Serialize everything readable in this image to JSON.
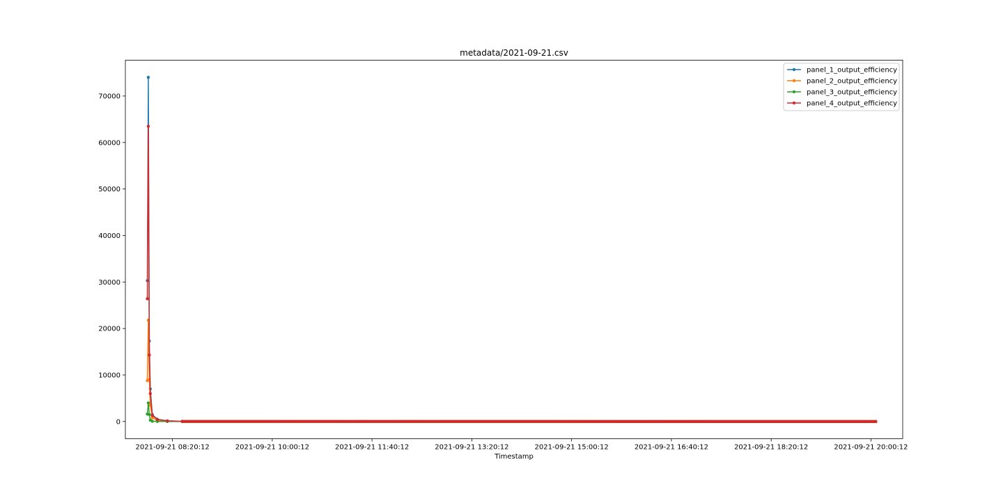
{
  "chart_data": {
    "type": "line",
    "title": "metadata/2021-09-21.csv",
    "xlabel": "Timestamp",
    "ylabel": "",
    "x_type": "datetime",
    "xlim": [
      "2021-09-21 07:33:00",
      "2021-09-21 20:32:00"
    ],
    "ylim": [
      -3700,
      77700
    ],
    "x_ticks": [
      "2021-09-21 08:20:12",
      "2021-09-21 10:00:12",
      "2021-09-21 11:40:12",
      "2021-09-21 13:20:12",
      "2021-09-21 15:00:12",
      "2021-09-21 16:40:12",
      "2021-09-21 18:20:12",
      "2021-09-21 20:00:12"
    ],
    "y_ticks": [
      0,
      10000,
      20000,
      30000,
      40000,
      50000,
      60000,
      70000
    ],
    "y_tick_labels": [
      "0",
      "10000",
      "20000",
      "30000",
      "40000",
      "50000",
      "60000",
      "70000"
    ],
    "grid": false,
    "legend_position": "top-right",
    "marker": "dot",
    "series": [
      {
        "name": "panel_1_output_efficiency",
        "color": "#1f77b4",
        "points": [
          [
            "2021-09-21 07:55:00",
            30300
          ],
          [
            "2021-09-21 07:56:00",
            74000
          ],
          [
            "2021-09-21 07:57:00",
            17300
          ],
          [
            "2021-09-21 07:58:00",
            7000
          ],
          [
            "2021-09-21 08:00:00",
            1500
          ],
          [
            "2021-09-21 08:05:00",
            500
          ],
          [
            "2021-09-21 08:15:00",
            150
          ],
          [
            "2021-09-21 08:30:00",
            40
          ],
          [
            "2021-09-21 20:05:00",
            0
          ]
        ]
      },
      {
        "name": "panel_2_output_efficiency",
        "color": "#ff7f0e",
        "points": [
          [
            "2021-09-21 07:55:00",
            8800
          ],
          [
            "2021-09-21 07:56:00",
            21800
          ],
          [
            "2021-09-21 07:57:00",
            9000
          ],
          [
            "2021-09-21 07:58:00",
            3500
          ],
          [
            "2021-09-21 08:00:00",
            800
          ],
          [
            "2021-09-21 08:05:00",
            250
          ],
          [
            "2021-09-21 08:15:00",
            80
          ],
          [
            "2021-09-21 08:30:00",
            20
          ],
          [
            "2021-09-21 20:05:00",
            0
          ]
        ]
      },
      {
        "name": "panel_3_output_efficiency",
        "color": "#2ca02c",
        "points": [
          [
            "2021-09-21 07:55:00",
            1600
          ],
          [
            "2021-09-21 07:56:00",
            4000
          ],
          [
            "2021-09-21 07:57:00",
            1500
          ],
          [
            "2021-09-21 07:58:00",
            300
          ],
          [
            "2021-09-21 08:00:00",
            60
          ],
          [
            "2021-09-21 08:05:00",
            20
          ],
          [
            "2021-09-21 08:15:00",
            5
          ],
          [
            "2021-09-21 08:30:00",
            0
          ],
          [
            "2021-09-21 20:05:00",
            0
          ]
        ]
      },
      {
        "name": "panel_4_output_efficiency",
        "color": "#d62728",
        "points": [
          [
            "2021-09-21 07:55:00",
            26400
          ],
          [
            "2021-09-21 07:56:00",
            63500
          ],
          [
            "2021-09-21 07:57:00",
            14300
          ],
          [
            "2021-09-21 07:58:00",
            6000
          ],
          [
            "2021-09-21 08:00:00",
            1300
          ],
          [
            "2021-09-21 08:05:00",
            450
          ],
          [
            "2021-09-21 08:15:00",
            130
          ],
          [
            "2021-09-21 08:30:00",
            30
          ],
          [
            "2021-09-21 20:05:00",
            0
          ]
        ]
      }
    ]
  }
}
